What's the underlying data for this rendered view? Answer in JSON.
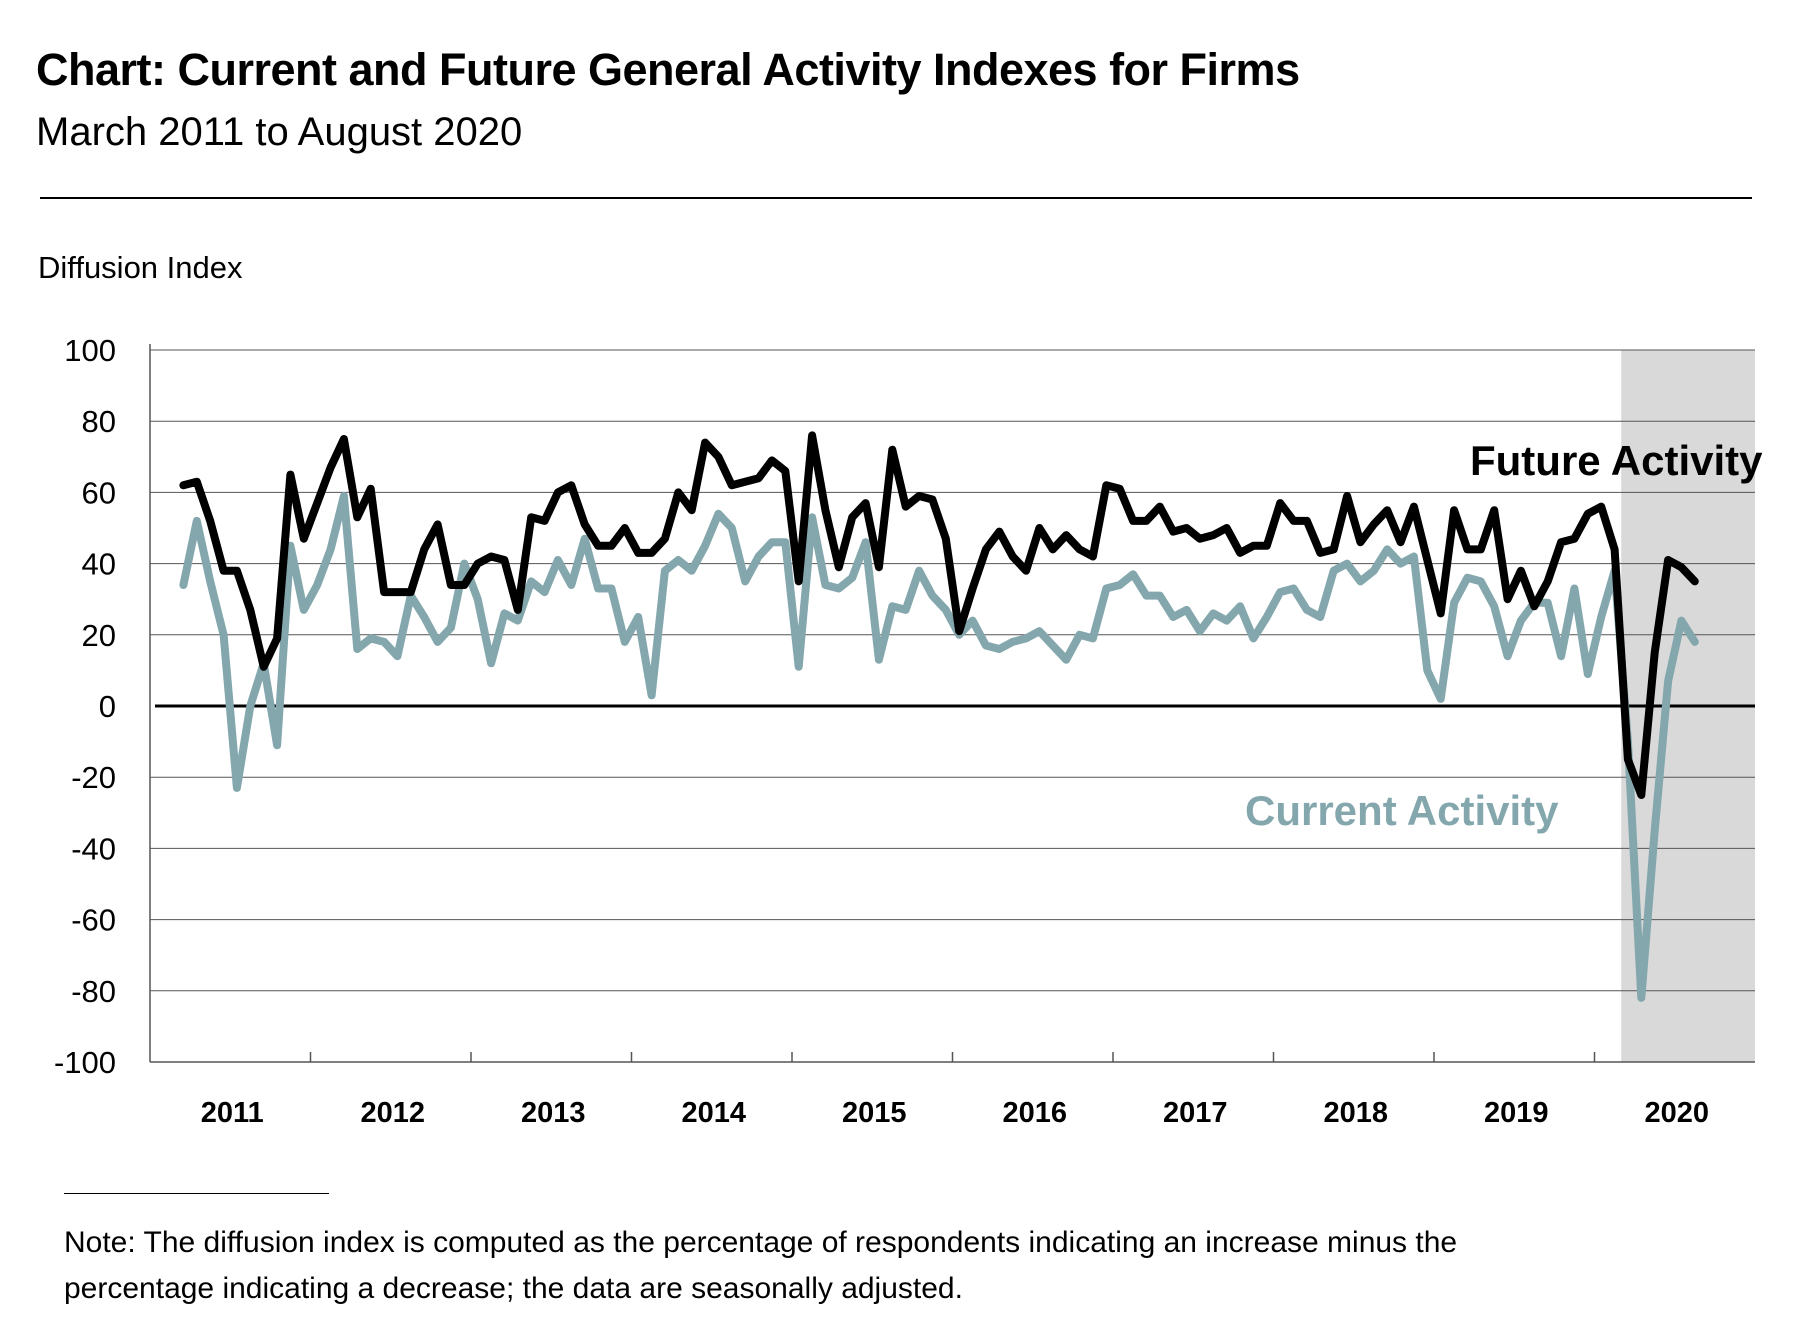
{
  "header": {
    "title": "Chart: Current and Future General Activity Indexes for Firms",
    "subtitle": "March 2011 to August 2020"
  },
  "footer": {
    "note_line1": "Note:  The diffusion index is computed as the percentage of respondents indicating an increase minus the",
    "note_line2": "percentage indicating a decrease; the data are seasonally adjusted."
  },
  "chart_data": {
    "type": "line",
    "title": "Chart: Current and Future General Activity Indexes for Firms",
    "subtitle": "March 2011 to August 2020",
    "ylabel": "Diffusion Index",
    "xlabel": "",
    "ylim": [
      -100,
      100
    ],
    "yticks": [
      100,
      80,
      60,
      40,
      20,
      0,
      -20,
      -40,
      -60,
      -80,
      -100
    ],
    "x_year_labels": [
      "2011",
      "2012",
      "2013",
      "2014",
      "2015",
      "2016",
      "2017",
      "2018",
      "2019",
      "2020"
    ],
    "x_start": "2011-03",
    "x_end": "2020-08",
    "grid": true,
    "shaded_region": {
      "from": "2020-03",
      "to": "2020-08",
      "color": "#d9d9d9"
    },
    "series": [
      {
        "name": "Future Activity",
        "color": "#000000",
        "values": [
          62,
          63,
          52,
          38,
          38,
          27,
          11,
          19,
          65,
          47,
          57,
          67,
          75,
          53,
          61,
          32,
          32,
          32,
          44,
          51,
          34,
          34,
          40,
          42,
          41,
          27,
          53,
          52,
          60,
          62,
          51,
          45,
          45,
          50,
          43,
          43,
          47,
          60,
          55,
          74,
          70,
          62,
          63,
          64,
          69,
          66,
          35,
          76,
          55,
          39,
          53,
          57,
          39,
          72,
          56,
          59,
          58,
          47,
          21,
          33,
          44,
          49,
          42,
          38,
          50,
          44,
          48,
          44,
          42,
          62,
          61,
          52,
          52,
          56,
          49,
          50,
          47,
          48,
          50,
          43,
          45,
          45,
          57,
          52,
          52,
          43,
          44,
          59,
          46,
          51,
          55,
          46,
          56,
          41,
          26,
          55,
          44,
          44,
          55,
          30,
          38,
          28,
          35,
          46,
          47,
          54,
          56,
          44,
          -15,
          -25,
          15,
          41,
          39,
          35
        ],
        "visible_label": "Future Activity"
      },
      {
        "name": "Current Activity",
        "color": "#83a7ad",
        "values": [
          34,
          52,
          35,
          20,
          -23,
          0,
          12,
          -11,
          45,
          27,
          34,
          44,
          59,
          16,
          19,
          18,
          14,
          31,
          25,
          18,
          22,
          40,
          30,
          12,
          26,
          24,
          35,
          32,
          41,
          34,
          47,
          33,
          33,
          18,
          25,
          3,
          38,
          41,
          38,
          45,
          54,
          50,
          35,
          42,
          46,
          46,
          11,
          53,
          34,
          33,
          36,
          46,
          13,
          28,
          27,
          38,
          31,
          27,
          20,
          24,
          17,
          16,
          18,
          19,
          21,
          17,
          13,
          20,
          19,
          33,
          34,
          37,
          31,
          31,
          25,
          27,
          21,
          26,
          24,
          28,
          19,
          25,
          32,
          33,
          27,
          25,
          38,
          40,
          35,
          38,
          44,
          40,
          42,
          10,
          2,
          29,
          36,
          35,
          28,
          14,
          24,
          29,
          29,
          14,
          33,
          9,
          25,
          38,
          -10,
          -82,
          -35,
          7,
          24,
          18
        ],
        "visible_label": "Current Activity"
      }
    ]
  }
}
